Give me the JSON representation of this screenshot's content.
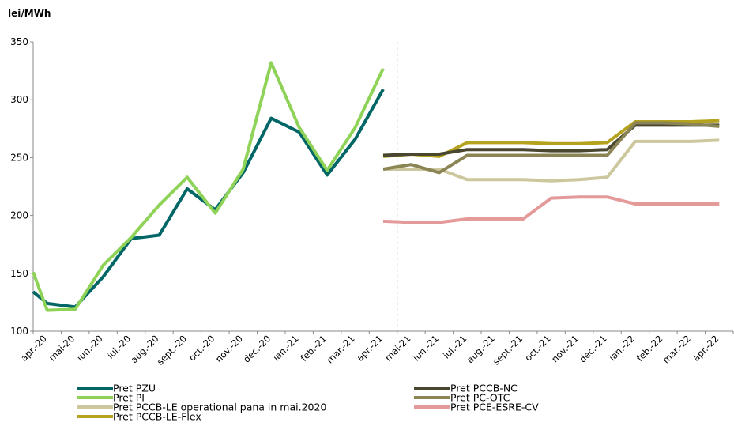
{
  "chart_data": {
    "type": "line",
    "ylabel": "lei/MWh",
    "ylim": [
      100,
      350
    ],
    "yticks": [
      100,
      150,
      200,
      250,
      300,
      350
    ],
    "categories": [
      "apr.-20",
      "mai-20",
      "iun.-20",
      "iul.-20",
      "aug.-20",
      "sept.-20",
      "oct.-20",
      "nov.-20",
      "dec.-20",
      "ian.-21",
      "feb.-21",
      "mar.-21",
      "apr.-21",
      "mai-21",
      "iun.-21",
      "iul.-21",
      "aug.-21",
      "sept.-21",
      "oct.-21",
      "nov.-21",
      "dec.-21",
      "ian.-22",
      "feb.-22",
      "mar.-22",
      "apr.-22"
    ],
    "divider_after": "apr.-21",
    "grid": false,
    "legend_position": "bottom",
    "series": [
      {
        "name": "Pret PZU",
        "color": "#006666",
        "points": [
          [
            0,
            134
          ],
          [
            0.5,
            124
          ],
          [
            1.5,
            121
          ],
          [
            2.5,
            147
          ],
          [
            3.5,
            180
          ],
          [
            4.5,
            183
          ],
          [
            5.5,
            223
          ],
          [
            6.5,
            205
          ],
          [
            7.5,
            237
          ],
          [
            8.5,
            284
          ],
          [
            9.5,
            272
          ],
          [
            10.5,
            235
          ],
          [
            11.5,
            266
          ],
          [
            12.5,
            309
          ]
        ]
      },
      {
        "name": "Pret PI",
        "color": "#8ed357",
        "points": [
          [
            0,
            151
          ],
          [
            0.5,
            118
          ],
          [
            1.5,
            119
          ],
          [
            2.5,
            157
          ],
          [
            3.5,
            181
          ],
          [
            4.5,
            209
          ],
          [
            5.5,
            233
          ],
          [
            6.5,
            202
          ],
          [
            7.5,
            240
          ],
          [
            8.5,
            332
          ],
          [
            9.5,
            276
          ],
          [
            10.5,
            239
          ],
          [
            11.5,
            276
          ],
          [
            12.5,
            327
          ]
        ]
      },
      {
        "name": "Pret PCCB-LE operational pana in mai.2020",
        "color": "#cdc79e",
        "points": [
          [
            12.5,
            240
          ],
          [
            13.5,
            240
          ],
          [
            14.5,
            240
          ],
          [
            15.5,
            231
          ],
          [
            16.5,
            231
          ],
          [
            17.5,
            231
          ],
          [
            18.5,
            230
          ],
          [
            19.5,
            231
          ],
          [
            20.5,
            233
          ],
          [
            21.5,
            264
          ],
          [
            22.5,
            264
          ],
          [
            23.5,
            264
          ],
          [
            24.5,
            265
          ]
        ]
      },
      {
        "name": "Pret PCCB-LE-Flex",
        "color": "#b5a21e",
        "points": [
          [
            12.5,
            251
          ],
          [
            13.5,
            253
          ],
          [
            14.5,
            251
          ],
          [
            15.5,
            263
          ],
          [
            16.5,
            263
          ],
          [
            17.5,
            263
          ],
          [
            18.5,
            262
          ],
          [
            19.5,
            262
          ],
          [
            20.5,
            263
          ],
          [
            21.5,
            281
          ],
          [
            22.5,
            281
          ],
          [
            23.5,
            281
          ],
          [
            24.5,
            282
          ]
        ]
      },
      {
        "name": "Pret PCCB-NC",
        "color": "#4a4731",
        "points": [
          [
            12.5,
            252
          ],
          [
            13.5,
            253
          ],
          [
            14.5,
            253
          ],
          [
            15.5,
            257
          ],
          [
            16.5,
            257
          ],
          [
            17.5,
            257
          ],
          [
            18.5,
            256
          ],
          [
            19.5,
            256
          ],
          [
            20.5,
            257
          ],
          [
            21.5,
            278
          ],
          [
            22.5,
            278
          ],
          [
            23.5,
            278
          ],
          [
            24.5,
            278
          ]
        ]
      },
      {
        "name": "Pret PC-OTC",
        "color": "#8b8555",
        "points": [
          [
            12.5,
            240
          ],
          [
            13.5,
            244
          ],
          [
            14.5,
            237
          ],
          [
            15.5,
            252
          ],
          [
            16.5,
            252
          ],
          [
            17.5,
            252
          ],
          [
            18.5,
            252
          ],
          [
            19.5,
            252
          ],
          [
            20.5,
            252
          ],
          [
            21.5,
            280
          ],
          [
            22.5,
            280
          ],
          [
            23.5,
            279
          ],
          [
            24.5,
            277
          ]
        ]
      },
      {
        "name": "Pret PCE-ESRE-CV",
        "color": "#e39a98",
        "points": [
          [
            12.5,
            195
          ],
          [
            13.5,
            194
          ],
          [
            14.5,
            194
          ],
          [
            15.5,
            197
          ],
          [
            16.5,
            197
          ],
          [
            17.5,
            197
          ],
          [
            18.5,
            215
          ],
          [
            19.5,
            216
          ],
          [
            20.5,
            216
          ],
          [
            21.5,
            210
          ],
          [
            22.5,
            210
          ],
          [
            23.5,
            210
          ],
          [
            24.5,
            210
          ]
        ]
      }
    ],
    "legend_order": [
      "Pret PZU",
      "Pret PCCB-NC",
      "Pret PI",
      "Pret PC-OTC",
      "Pret PCCB-LE operational pana in mai.2020",
      "Pret PCE-ESRE-CV",
      "Pret PCCB-LE-Flex"
    ]
  }
}
